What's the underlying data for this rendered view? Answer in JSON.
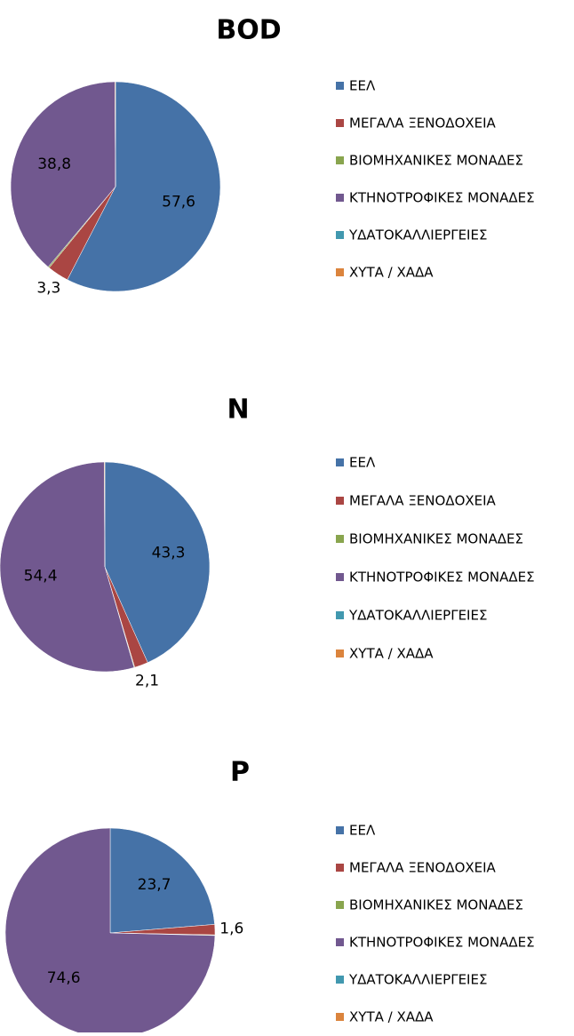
{
  "chart_data": [
    {
      "type": "pie",
      "title": "BOD",
      "categories": [
        "ΕΕΛ",
        "ΜΕΓΑΛΑ ΞΕΝΟΔΟΧΕΙΑ",
        "ΒΙΟΜΗΧΑΝΙΚΕΣ ΜΟΝΑΔΕΣ",
        "ΚΤΗΝΟΤΡΟΦΙΚΕΣ ΜΟΝΑΔΕΣ",
        "ΥΔΑΤΟΚΑΛΛΙΕΡΓΕΙΕΣ",
        "ΧΥΤΑ / ΧΑΔΑ"
      ],
      "values": [
        57.6,
        3.3,
        0.2,
        38.8,
        0,
        0.1
      ],
      "value_labels": [
        "57,6",
        "3,3",
        null,
        "38,8",
        null,
        null
      ],
      "colors": [
        "#4572a7",
        "#aa4643",
        "#89a54e",
        "#71588f",
        "#4198af",
        "#db843d"
      ],
      "legend": "right"
    },
    {
      "type": "pie",
      "title": "N",
      "categories": [
        "ΕΕΛ",
        "ΜΕΓΑΛΑ ΞΕΝΟΔΟΧΕΙΑ",
        "ΒΙΟΜΗΧΑΝΙΚΕΣ ΜΟΝΑΔΕΣ",
        "ΚΤΗΝΟΤΡΟΦΙΚΕΣ ΜΟΝΑΔΕΣ",
        "ΥΔΑΤΟΚΑΛΛΙΕΡΓΕΙΕΣ",
        "ΧΥΤΑ / ΧΑΔΑ"
      ],
      "values": [
        43.3,
        2.1,
        0.1,
        54.4,
        0,
        0.1
      ],
      "value_labels": [
        "43,3",
        "2,1",
        null,
        "54,4",
        null,
        null
      ],
      "colors": [
        "#4572a7",
        "#aa4643",
        "#89a54e",
        "#71588f",
        "#4198af",
        "#db843d"
      ],
      "legend": "right"
    },
    {
      "type": "pie",
      "title": "P",
      "categories": [
        "ΕΕΛ",
        "ΜΕΓΑΛΑ ΞΕΝΟΔΟΧΕΙΑ",
        "ΒΙΟΜΗΧΑΝΙΚΕΣ ΜΟΝΑΔΕΣ",
        "ΚΤΗΝΟΤΡΟΦΙΚΕΣ ΜΟΝΑΔΕΣ",
        "ΥΔΑΤΟΚΑΛΛΙΕΡΓΕΙΕΣ",
        "ΧΥΤΑ / ΧΑΔΑ"
      ],
      "values": [
        23.7,
        1.6,
        0.1,
        74.6,
        0,
        0
      ],
      "value_labels": [
        "23,7",
        "1,6",
        null,
        "74,6",
        null,
        null
      ],
      "colors": [
        "#4572a7",
        "#aa4643",
        "#89a54e",
        "#71588f",
        "#4198af",
        "#db843d"
      ],
      "legend": "right"
    }
  ]
}
